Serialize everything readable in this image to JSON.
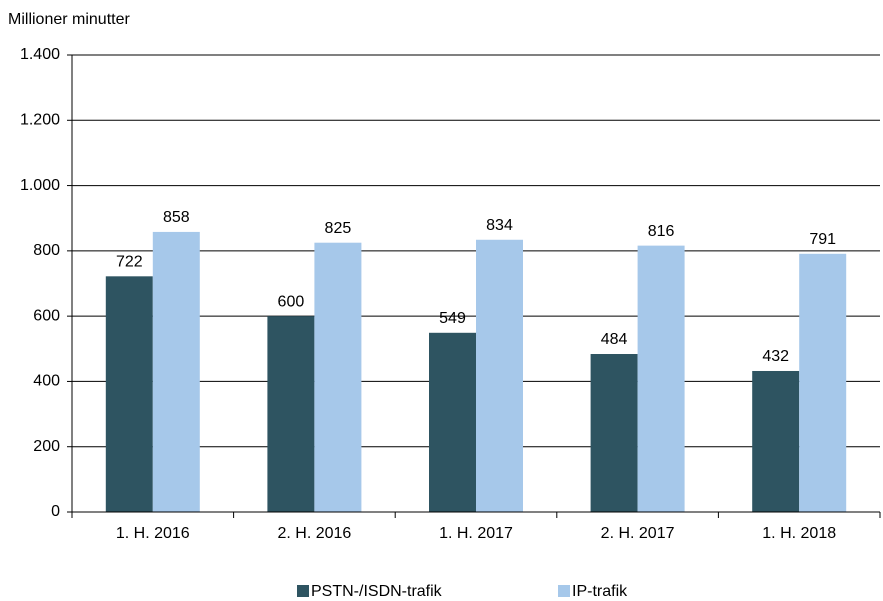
{
  "chart_data": {
    "type": "bar",
    "y_axis_label": "Millioner minutter",
    "categories": [
      "1. H. 2016",
      "2. H. 2016",
      "1. H. 2017",
      "2. H. 2017",
      "1. H. 2018"
    ],
    "series": [
      {
        "name": "PSTN-/ISDN-trafik",
        "color": "#2e5461",
        "values": [
          722,
          600,
          549,
          484,
          432
        ]
      },
      {
        "name": "IP-trafik",
        "color": "#a6c8ea",
        "values": [
          858,
          825,
          834,
          816,
          791
        ]
      }
    ],
    "ylim": [
      0,
      1400
    ],
    "yticks": [
      0,
      200,
      400,
      600,
      800,
      {
        "value": 1000,
        "label": "1.000"
      },
      {
        "value": 1200,
        "label": "1.200"
      },
      {
        "value": 1400,
        "label": "1.400"
      }
    ],
    "grid": true,
    "legend": "bottom"
  }
}
